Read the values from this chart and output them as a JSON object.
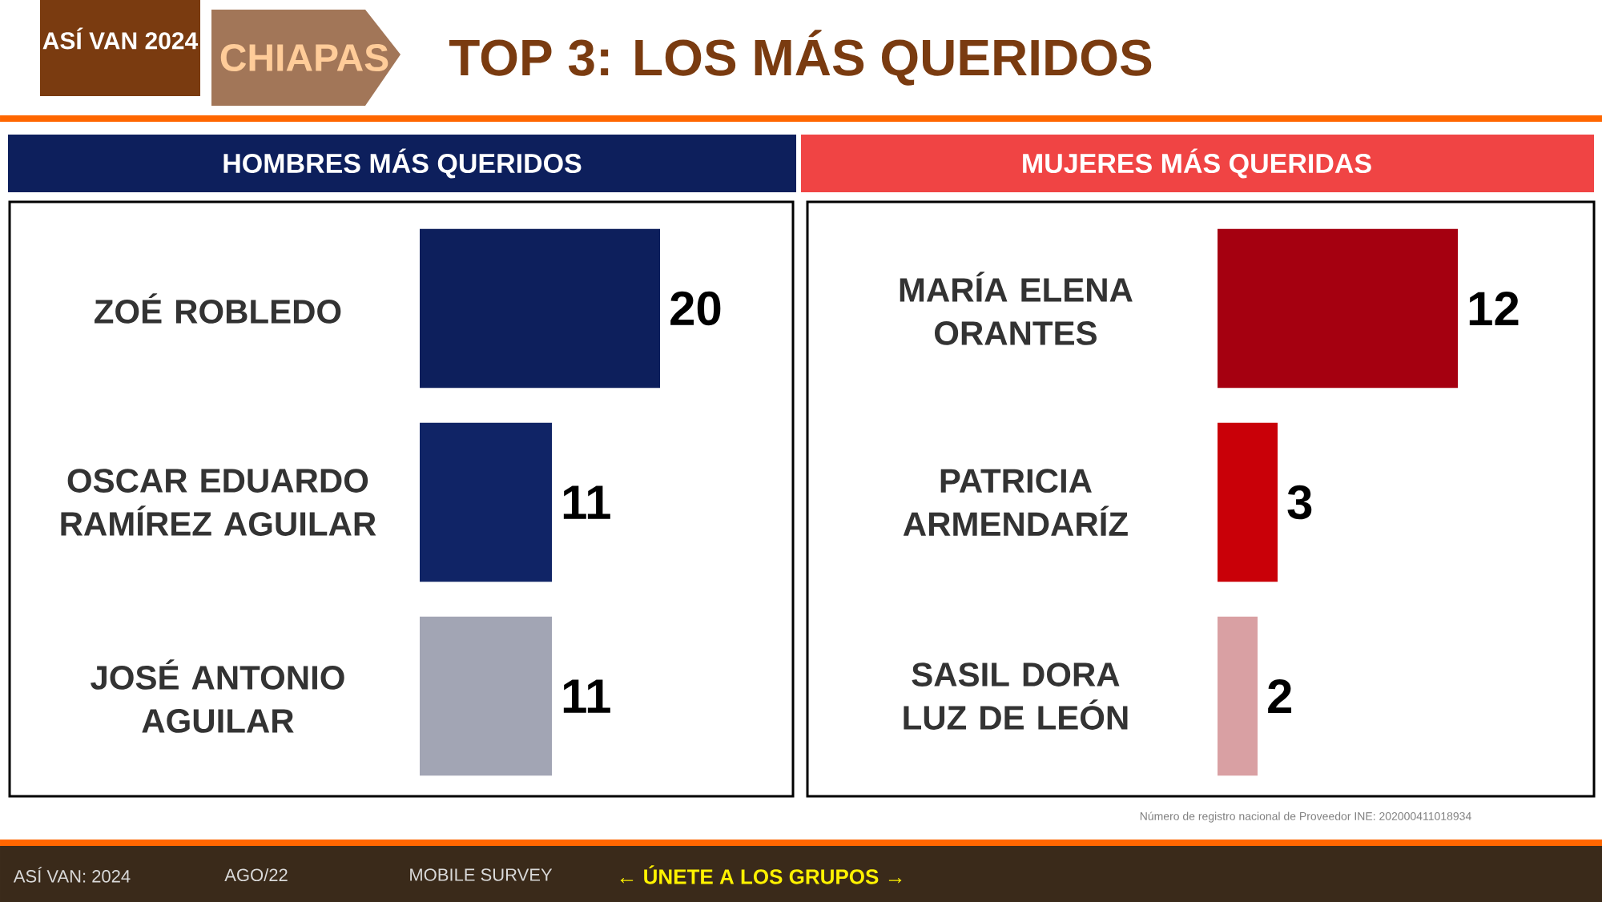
{
  "chart_data": [
    {
      "type": "bar",
      "orientation": "horizontal",
      "title": "HOMBRES MÁS QUERIDOS",
      "categories": [
        "ZOÉ ROBLEDO",
        "OSCAR EDUARDO RAMÍREZ AGUILAR",
        "JOSÉ ANTONIO AGUILAR"
      ],
      "values": [
        20,
        11,
        11
      ],
      "colors": [
        "#0d1f5c",
        "#102466",
        "#a2a5b4"
      ],
      "data_labels": true,
      "annotations": [
        "ASÍ VAN 2024",
        "CHIAPAS",
        "TOP 3: LOS MÁS QUERIDOS",
        "Número de registro nacional de Proveedor INE: 202000411018934",
        "ASÍ VAN: 2024",
        "AGO/22",
        "MOBILE SURVEY",
        "← ÚNETE A LOS GRUPOS →"
      ]
    },
    {
      "type": "bar",
      "orientation": "horizontal",
      "title": "MUJERES MÁS QUERIDAS",
      "categories": [
        "MARÍA ELENA ORANTES",
        "PATRICIA ARMENDARÍZ",
        "SASIL DORA LUZ DE LEÓN"
      ],
      "values": [
        12,
        3,
        2
      ],
      "colors": [
        "#a50010",
        "#c90008",
        "#d9a0a3"
      ],
      "data_labels": true
    }
  ]
}
